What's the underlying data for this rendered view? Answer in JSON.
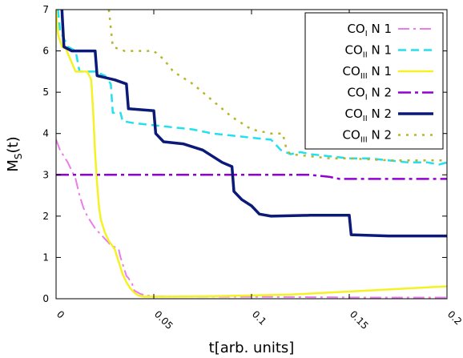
{
  "chart_data": {
    "type": "line",
    "xlabel": "t[arb. units]",
    "ylabel_main": "M",
    "ylabel_sub": "S",
    "ylabel_tail": "(t)",
    "xlim": [
      0,
      0.2
    ],
    "ylim": [
      0,
      7
    ],
    "xticks": [
      {
        "v": 0,
        "label": "0"
      },
      {
        "v": 0.05,
        "label": "0.05"
      },
      {
        "v": 0.1,
        "label": "0.1"
      },
      {
        "v": 0.15,
        "label": "0.15"
      },
      {
        "v": 0.2,
        "label": "0.2"
      }
    ],
    "yticks": [
      0,
      1,
      2,
      3,
      4,
      5,
      6,
      7
    ],
    "grid": false,
    "legend_position": "top-right",
    "series": [
      {
        "name_base": "CO",
        "name_sub": "I",
        "name_tail": " N 1",
        "color": "#e87ee8",
        "dash": "14 5 3 5",
        "width": 2,
        "points": [
          [
            0,
            3.85
          ],
          [
            0.002,
            3.6
          ],
          [
            0.004,
            3.45
          ],
          [
            0.006,
            3.3
          ],
          [
            0.008,
            3.1
          ],
          [
            0.01,
            2.9
          ],
          [
            0.012,
            2.5
          ],
          [
            0.014,
            2.2
          ],
          [
            0.016,
            2.0
          ],
          [
            0.018,
            1.85
          ],
          [
            0.02,
            1.7
          ],
          [
            0.022,
            1.6
          ],
          [
            0.024,
            1.5
          ],
          [
            0.026,
            1.4
          ],
          [
            0.028,
            1.3
          ],
          [
            0.03,
            1.25
          ],
          [
            0.032,
            1.2
          ],
          [
            0.033,
            1.0
          ],
          [
            0.034,
            0.85
          ],
          [
            0.035,
            0.7
          ],
          [
            0.036,
            0.55
          ],
          [
            0.037,
            0.5
          ],
          [
            0.039,
            0.35
          ],
          [
            0.04,
            0.2
          ],
          [
            0.043,
            0.12
          ],
          [
            0.046,
            0.08
          ],
          [
            0.05,
            0.06
          ],
          [
            0.06,
            0.05
          ],
          [
            0.08,
            0.05
          ],
          [
            0.12,
            0.04
          ],
          [
            0.16,
            0.03
          ],
          [
            0.2,
            0.03
          ]
        ]
      },
      {
        "name_base": "CO",
        "name_sub": "II",
        "name_tail": " N 1",
        "color": "#22e0ee",
        "dash": "10 6",
        "width": 2.5,
        "points": [
          [
            0.001,
            7
          ],
          [
            0.002,
            6.5
          ],
          [
            0.006,
            6.1
          ],
          [
            0.01,
            6.0
          ],
          [
            0.012,
            5.5
          ],
          [
            0.02,
            5.5
          ],
          [
            0.025,
            5.4
          ],
          [
            0.028,
            5.2
          ],
          [
            0.029,
            4.5
          ],
          [
            0.033,
            4.5
          ],
          [
            0.034,
            4.3
          ],
          [
            0.04,
            4.25
          ],
          [
            0.05,
            4.2
          ],
          [
            0.06,
            4.15
          ],
          [
            0.07,
            4.1
          ],
          [
            0.08,
            4.0
          ],
          [
            0.09,
            3.95
          ],
          [
            0.1,
            3.9
          ],
          [
            0.11,
            3.85
          ],
          [
            0.115,
            3.6
          ],
          [
            0.12,
            3.5
          ],
          [
            0.125,
            3.55
          ],
          [
            0.13,
            3.5
          ],
          [
            0.14,
            3.45
          ],
          [
            0.15,
            3.4
          ],
          [
            0.16,
            3.4
          ],
          [
            0.17,
            3.35
          ],
          [
            0.18,
            3.3
          ],
          [
            0.19,
            3.3
          ],
          [
            0.196,
            3.25
          ],
          [
            0.2,
            3.3
          ]
        ]
      },
      {
        "name_base": "CO",
        "name_sub": "III",
        "name_tail": " N 1",
        "color": "#f5f224",
        "dash": "",
        "width": 2.5,
        "points": [
          [
            0,
            7
          ],
          [
            0.001,
            6.4
          ],
          [
            0.003,
            6.1
          ],
          [
            0.005,
            6.05
          ],
          [
            0.01,
            5.5
          ],
          [
            0.016,
            5.5
          ],
          [
            0.018,
            5.3
          ],
          [
            0.019,
            4.5
          ],
          [
            0.02,
            3.5
          ],
          [
            0.021,
            2.8
          ],
          [
            0.022,
            2.2
          ],
          [
            0.023,
            1.9
          ],
          [
            0.025,
            1.6
          ],
          [
            0.027,
            1.4
          ],
          [
            0.03,
            1.2
          ],
          [
            0.032,
            0.9
          ],
          [
            0.034,
            0.6
          ],
          [
            0.036,
            0.4
          ],
          [
            0.038,
            0.25
          ],
          [
            0.04,
            0.15
          ],
          [
            0.042,
            0.08
          ],
          [
            0.045,
            0.05
          ],
          [
            0.06,
            0.05
          ],
          [
            0.08,
            0.06
          ],
          [
            0.1,
            0.08
          ],
          [
            0.12,
            0.1
          ],
          [
            0.14,
            0.15
          ],
          [
            0.16,
            0.2
          ],
          [
            0.18,
            0.25
          ],
          [
            0.2,
            0.3
          ]
        ]
      },
      {
        "name_base": "CO",
        "name_sub": "I",
        "name_tail": " N 2",
        "color": "#9400d3",
        "dash": "16 5 4 5",
        "width": 2.5,
        "points": [
          [
            0,
            3
          ],
          [
            0.13,
            3
          ],
          [
            0.14,
            2.95
          ],
          [
            0.145,
            2.9
          ],
          [
            0.2,
            2.9
          ]
        ]
      },
      {
        "name_base": "CO",
        "name_sub": "II",
        "name_tail": " N 2",
        "color": "#0b1a78",
        "dash": "",
        "width": 3.5,
        "points": [
          [
            0.003,
            7
          ],
          [
            0.004,
            6.1
          ],
          [
            0.008,
            6.0
          ],
          [
            0.02,
            6.0
          ],
          [
            0.021,
            5.4
          ],
          [
            0.03,
            5.3
          ],
          [
            0.036,
            5.2
          ],
          [
            0.037,
            4.6
          ],
          [
            0.05,
            4.55
          ],
          [
            0.051,
            4.0
          ],
          [
            0.055,
            3.8
          ],
          [
            0.065,
            3.75
          ],
          [
            0.075,
            3.6
          ],
          [
            0.085,
            3.3
          ],
          [
            0.09,
            3.2
          ],
          [
            0.091,
            2.6
          ],
          [
            0.095,
            2.4
          ],
          [
            0.1,
            2.25
          ],
          [
            0.104,
            2.05
          ],
          [
            0.11,
            2.0
          ],
          [
            0.13,
            2.02
          ],
          [
            0.15,
            2.02
          ],
          [
            0.151,
            1.55
          ],
          [
            0.17,
            1.52
          ],
          [
            0.2,
            1.52
          ]
        ]
      },
      {
        "name_base": "CO",
        "name_sub": "III",
        "name_tail": " N 2",
        "color": "#b5b52a",
        "dash": "3 7",
        "width": 2.5,
        "points": [
          [
            0.027,
            7
          ],
          [
            0.029,
            6.1
          ],
          [
            0.035,
            6.0
          ],
          [
            0.05,
            6.0
          ],
          [
            0.055,
            5.8
          ],
          [
            0.06,
            5.5
          ],
          [
            0.07,
            5.2
          ],
          [
            0.08,
            4.8
          ],
          [
            0.09,
            4.4
          ],
          [
            0.1,
            4.1
          ],
          [
            0.11,
            4.0
          ],
          [
            0.116,
            4.0
          ],
          [
            0.118,
            3.6
          ],
          [
            0.12,
            3.5
          ],
          [
            0.13,
            3.45
          ],
          [
            0.14,
            3.4
          ],
          [
            0.15,
            3.4
          ],
          [
            0.17,
            3.35
          ],
          [
            0.2,
            3.35
          ]
        ]
      }
    ]
  }
}
